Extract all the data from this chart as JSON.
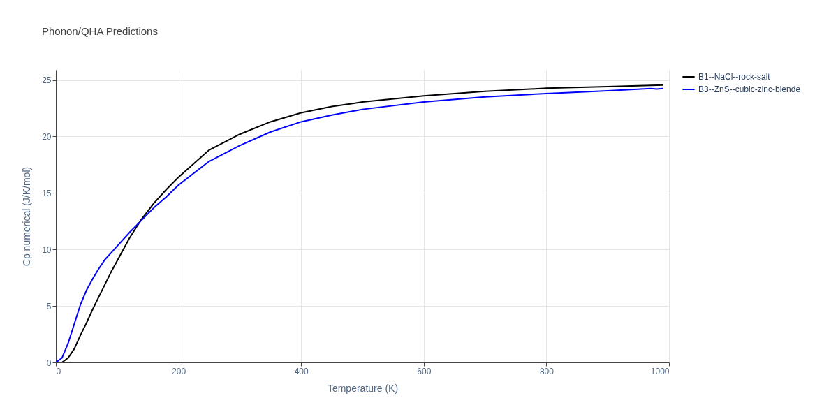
{
  "chart_data": {
    "type": "line",
    "title": "Phonon/QHA Predictions",
    "xlabel": "Temperature (K)",
    "ylabel": "Cp numerical (J/K/mol)",
    "xlim": [
      0,
      1000
    ],
    "ylim": [
      0,
      25.9
    ],
    "xticks": [
      0,
      200,
      400,
      600,
      800,
      1000
    ],
    "yticks": [
      0,
      5,
      10,
      15,
      20,
      25
    ],
    "grid": true,
    "legend": "top right",
    "series": [
      {
        "name": "B1--NaCl--rock-salt",
        "color": "#000000",
        "x": [
          0,
          10,
          20,
          30,
          40,
          50,
          60,
          70,
          80,
          90,
          100,
          120,
          140,
          160,
          180,
          200,
          250,
          300,
          350,
          400,
          450,
          500,
          600,
          700,
          800,
          900,
          990
        ],
        "values": [
          0,
          0,
          0.4,
          1.2,
          2.4,
          3.5,
          4.7,
          5.8,
          6.9,
          8.0,
          9.0,
          11.0,
          12.7,
          14.1,
          15.3,
          16.4,
          18.8,
          20.2,
          21.3,
          22.1,
          22.65,
          23.05,
          23.6,
          24.0,
          24.27,
          24.42,
          24.55
        ]
      },
      {
        "name": "B3--ZnS--cubic-zinc-blende",
        "color": "#0000ff",
        "x": [
          0,
          10,
          20,
          30,
          40,
          50,
          60,
          70,
          80,
          90,
          100,
          120,
          140,
          160,
          180,
          200,
          250,
          300,
          350,
          400,
          450,
          500,
          600,
          700,
          800,
          900,
          970,
          980,
          990
        ],
        "values": [
          0,
          0.4,
          1.7,
          3.4,
          5.1,
          6.4,
          7.4,
          8.3,
          9.1,
          9.7,
          10.3,
          11.5,
          12.6,
          13.7,
          14.65,
          15.7,
          17.8,
          19.2,
          20.4,
          21.3,
          21.9,
          22.4,
          23.05,
          23.5,
          23.8,
          24.05,
          24.25,
          24.2,
          24.25
        ]
      }
    ]
  }
}
